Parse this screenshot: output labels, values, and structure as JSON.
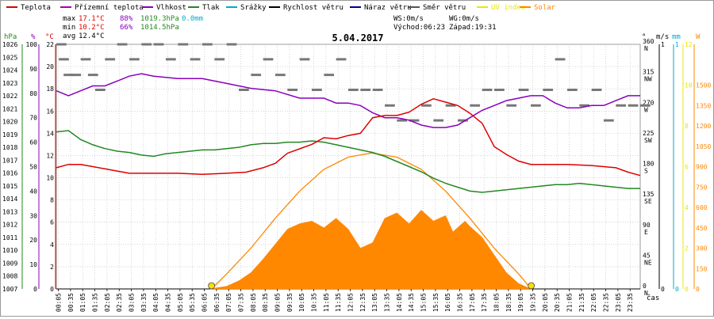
{
  "legend": [
    {
      "label": "Teplota",
      "color": "#dd0000"
    },
    {
      "label": "Přízemní teplota",
      "color": "#aa00aa"
    },
    {
      "label": "Vlhkost",
      "color": "#8800bb"
    },
    {
      "label": "Tlak",
      "color": "#228822"
    },
    {
      "label": "Srážky",
      "color": "#00aacc"
    },
    {
      "label": "Rychlost větru",
      "color": "#000000"
    },
    {
      "label": "Náraz větru",
      "color": "#000088"
    },
    {
      "label": "Směr větru",
      "color": "#555555"
    },
    {
      "label": "UV index",
      "color": "#e8e800"
    },
    {
      "label": "Solar",
      "color": "#ff8800"
    }
  ],
  "stats": {
    "max_label": "max",
    "max_temp": "17.1°C",
    "max_hum": "88%",
    "max_press": "1019.3hPa",
    "max_rain": "0.0mm",
    "min_label": "min",
    "min_temp": "10.2°C",
    "min_hum": "66%",
    "min_press": "1014.5hPa",
    "avg_label": "avg",
    "avg_temp": "12.4°C"
  },
  "wind": {
    "ws": "WS:0m/s",
    "wg": "WG:0m/s",
    "sunrise": "Východ:06:23",
    "sunset": "Západ:19:31"
  },
  "date": "5.04.2017",
  "axis_headers": {
    "hpa": "hPa",
    "pct": "%",
    "degc": "°C",
    "deg": "°",
    "ms": "m/s",
    "mm": "mm",
    "w": "W"
  },
  "xlabel": "čas",
  "colors": {
    "temp": "#dd0000",
    "hum": "#8800bb",
    "press": "#228822",
    "solar": "#ff8800",
    "grid": "#bbbbbb",
    "dir": "#777777",
    "sun": "#ffdd00"
  },
  "chart_data": {
    "type": "line",
    "title": "5.04.2017",
    "x_range_hours": [
      0,
      24
    ],
    "x_ticks": [
      "00:05",
      "00:35",
      "01:05",
      "01:35",
      "02:05",
      "02:35",
      "03:05",
      "03:35",
      "04:05",
      "04:35",
      "05:05",
      "05:35",
      "06:05",
      "06:35",
      "07:05",
      "07:35",
      "08:05",
      "08:35",
      "09:05",
      "09:35",
      "10:05",
      "10:35",
      "11:05",
      "11:35",
      "12:05",
      "12:35",
      "13:05",
      "13:35",
      "14:05",
      "14:35",
      "15:05",
      "15:35",
      "16:05",
      "16:35",
      "17:05",
      "17:35",
      "18:05",
      "18:35",
      "19:05",
      "19:35",
      "20:05",
      "20:35",
      "21:05",
      "21:35",
      "22:05",
      "22:35",
      "23:05",
      "23:35"
    ],
    "y_axes": {
      "pressure_hpa": {
        "range": [
          1007,
          1026
        ],
        "ticks": [
          "1007",
          "1008",
          "1009",
          "1010",
          "1011",
          "1012",
          "1013",
          "1014",
          "1015",
          "1016",
          "1017",
          "1018",
          "1019",
          "1020",
          "1021",
          "1022",
          "1023",
          "1024",
          "1025",
          "1026"
        ]
      },
      "humidity_pct": {
        "range": [
          0,
          100
        ],
        "ticks": [
          "0",
          "10",
          "20",
          "30",
          "40",
          "50",
          "60",
          "70",
          "80",
          "90",
          "100"
        ]
      },
      "temp_c": {
        "range": [
          0,
          22
        ],
        "ticks": [
          "0",
          "2",
          "4",
          "6",
          "8",
          "10",
          "12",
          "14",
          "16",
          "18",
          "20",
          "22"
        ]
      },
      "wind_dir_deg": {
        "range": [
          0,
          360
        ],
        "ticks": [
          "0",
          "45",
          "90",
          "135",
          "180",
          "225",
          "270",
          "315",
          "360"
        ],
        "compass": [
          "N",
          "NE",
          "E",
          "SE",
          "S",
          "SW",
          "W",
          "NW",
          "N"
        ]
      },
      "wind_ms": {
        "range": [
          0,
          1
        ],
        "ticks": [
          "0",
          "1"
        ]
      },
      "rain_mm": {
        "range": [
          0,
          1
        ],
        "ticks": [
          "0",
          "1"
        ]
      },
      "uv": {
        "range": [
          0,
          12
        ],
        "ticks": [
          "0",
          "2",
          "4",
          "6",
          "8",
          "10",
          "12"
        ]
      },
      "solar_w": {
        "range": [
          0,
          1800
        ],
        "ticks": [
          "0",
          "150",
          "300",
          "450",
          "600",
          "750",
          "900",
          "1050",
          "1200",
          "1350",
          "1500"
        ]
      }
    },
    "series": [
      {
        "name": "Teplota",
        "unit": "°C",
        "color": "#dd0000",
        "points": [
          [
            0,
            10.9
          ],
          [
            0.5,
            11.2
          ],
          [
            1,
            11.2
          ],
          [
            1.5,
            11.0
          ],
          [
            2,
            10.8
          ],
          [
            2.5,
            10.6
          ],
          [
            3,
            10.4
          ],
          [
            4,
            10.4
          ],
          [
            5,
            10.4
          ],
          [
            6,
            10.3
          ],
          [
            7,
            10.4
          ],
          [
            7.8,
            10.5
          ],
          [
            8.5,
            10.9
          ],
          [
            9,
            11.3
          ],
          [
            9.5,
            12.2
          ],
          [
            10,
            12.6
          ],
          [
            10.5,
            13.0
          ],
          [
            11,
            13.6
          ],
          [
            11.5,
            13.5
          ],
          [
            12,
            13.8
          ],
          [
            12.5,
            14.0
          ],
          [
            13,
            15.4
          ],
          [
            13.5,
            15.6
          ],
          [
            14,
            15.6
          ],
          [
            14.5,
            15.9
          ],
          [
            15,
            16.6
          ],
          [
            15.5,
            17.1
          ],
          [
            16,
            16.8
          ],
          [
            16.5,
            16.5
          ],
          [
            17,
            15.8
          ],
          [
            17.5,
            14.9
          ],
          [
            18,
            12.8
          ],
          [
            18.5,
            12.1
          ],
          [
            19,
            11.5
          ],
          [
            19.5,
            11.2
          ],
          [
            20,
            11.2
          ],
          [
            21,
            11.2
          ],
          [
            22,
            11.1
          ],
          [
            22.5,
            11.0
          ],
          [
            23,
            10.9
          ],
          [
            23.5,
            10.5
          ],
          [
            24,
            10.2
          ]
        ]
      },
      {
        "name": "Vlhkost",
        "unit": "%",
        "color": "#8800bb",
        "points": [
          [
            0,
            81
          ],
          [
            0.5,
            79
          ],
          [
            1,
            81
          ],
          [
            1.5,
            83
          ],
          [
            2,
            83
          ],
          [
            2.5,
            85
          ],
          [
            3,
            87
          ],
          [
            3.5,
            88
          ],
          [
            4,
            87
          ],
          [
            5,
            86
          ],
          [
            6,
            86
          ],
          [
            7,
            84
          ],
          [
            8,
            82
          ],
          [
            9,
            81
          ],
          [
            10,
            78
          ],
          [
            11,
            78
          ],
          [
            11.5,
            76
          ],
          [
            12,
            76
          ],
          [
            12.5,
            75
          ],
          [
            13,
            72
          ],
          [
            13.5,
            70
          ],
          [
            14,
            70
          ],
          [
            14.5,
            69
          ],
          [
            15,
            67
          ],
          [
            15.5,
            66
          ],
          [
            16,
            66
          ],
          [
            16.5,
            67
          ],
          [
            17,
            70
          ],
          [
            17.5,
            73
          ],
          [
            18,
            75
          ],
          [
            18.5,
            77
          ],
          [
            19,
            78
          ],
          [
            19.5,
            79
          ],
          [
            20,
            79
          ],
          [
            20.5,
            76
          ],
          [
            21,
            74
          ],
          [
            21.5,
            74
          ],
          [
            22,
            75
          ],
          [
            22.5,
            75
          ],
          [
            23,
            77
          ],
          [
            23.5,
            79
          ],
          [
            24,
            79
          ]
        ]
      },
      {
        "name": "Tlak",
        "unit": "hPa",
        "color": "#228822",
        "points": [
          [
            0,
            1019.2
          ],
          [
            0.5,
            1019.3
          ],
          [
            1,
            1018.6
          ],
          [
            1.5,
            1018.2
          ],
          [
            2,
            1017.9
          ],
          [
            2.5,
            1017.7
          ],
          [
            3,
            1017.6
          ],
          [
            3.5,
            1017.4
          ],
          [
            4,
            1017.3
          ],
          [
            4.5,
            1017.5
          ],
          [
            5,
            1017.6
          ],
          [
            5.5,
            1017.7
          ],
          [
            6,
            1017.8
          ],
          [
            6.5,
            1017.8
          ],
          [
            7,
            1017.9
          ],
          [
            7.5,
            1018.0
          ],
          [
            8,
            1018.2
          ],
          [
            8.5,
            1018.3
          ],
          [
            9,
            1018.3
          ],
          [
            9.5,
            1018.4
          ],
          [
            10,
            1018.4
          ],
          [
            10.5,
            1018.5
          ],
          [
            11,
            1018.4
          ],
          [
            11.5,
            1018.2
          ],
          [
            12,
            1018.0
          ],
          [
            12.5,
            1017.8
          ],
          [
            13,
            1017.6
          ],
          [
            13.5,
            1017.3
          ],
          [
            14,
            1016.9
          ],
          [
            14.5,
            1016.5
          ],
          [
            15,
            1016.1
          ],
          [
            15.5,
            1015.6
          ],
          [
            16,
            1015.2
          ],
          [
            16.5,
            1014.9
          ],
          [
            17,
            1014.6
          ],
          [
            17.5,
            1014.5
          ],
          [
            18,
            1014.6
          ],
          [
            18.5,
            1014.7
          ],
          [
            19,
            1014.8
          ],
          [
            19.5,
            1014.9
          ],
          [
            20,
            1015.0
          ],
          [
            20.5,
            1015.1
          ],
          [
            21,
            1015.1
          ],
          [
            21.5,
            1015.2
          ],
          [
            22,
            1015.1
          ],
          [
            22.5,
            1015.0
          ],
          [
            23,
            1014.9
          ],
          [
            23.5,
            1014.8
          ],
          [
            24,
            1014.8
          ]
        ]
      },
      {
        "name": "Solar",
        "unit": "W",
        "color": "#ff8800",
        "fill": true,
        "points": [
          [
            6.3,
            0
          ],
          [
            7,
            20
          ],
          [
            7.5,
            60
          ],
          [
            8,
            120
          ],
          [
            8.5,
            220
          ],
          [
            9,
            330
          ],
          [
            9.5,
            440
          ],
          [
            10,
            480
          ],
          [
            10.5,
            500
          ],
          [
            11,
            450
          ],
          [
            11.5,
            520
          ],
          [
            12,
            440
          ],
          [
            12.5,
            300
          ],
          [
            13,
            340
          ],
          [
            13.5,
            520
          ],
          [
            14,
            560
          ],
          [
            14.5,
            480
          ],
          [
            15,
            580
          ],
          [
            15.5,
            500
          ],
          [
            16,
            540
          ],
          [
            16.3,
            420
          ],
          [
            16.8,
            500
          ],
          [
            17,
            460
          ],
          [
            17.5,
            380
          ],
          [
            18,
            250
          ],
          [
            18.5,
            120
          ],
          [
            19,
            40
          ],
          [
            19.5,
            0
          ]
        ]
      },
      {
        "name": "Solar max",
        "unit": "W",
        "color": "#ff8800",
        "points": [
          [
            6.38,
            0
          ],
          [
            7,
            110
          ],
          [
            8,
            300
          ],
          [
            9,
            520
          ],
          [
            10,
            720
          ],
          [
            11,
            880
          ],
          [
            12,
            970
          ],
          [
            12.95,
            1000
          ],
          [
            14,
            970
          ],
          [
            15,
            880
          ],
          [
            16,
            720
          ],
          [
            17,
            520
          ],
          [
            18,
            300
          ],
          [
            19,
            110
          ],
          [
            19.52,
            0
          ]
        ]
      }
    ],
    "wind_direction_deg": [
      [
        0,
        360
      ],
      [
        0.1,
        338
      ],
      [
        0.3,
        315
      ],
      [
        0.6,
        315
      ],
      [
        1,
        338
      ],
      [
        1.3,
        315
      ],
      [
        1.6,
        293
      ],
      [
        2,
        338
      ],
      [
        2.5,
        360
      ],
      [
        3,
        338
      ],
      [
        3.5,
        360
      ],
      [
        4,
        360
      ],
      [
        4.5,
        338
      ],
      [
        5,
        360
      ],
      [
        5.5,
        338
      ],
      [
        6,
        360
      ],
      [
        6.5,
        338
      ],
      [
        7,
        360
      ],
      [
        7.5,
        293
      ],
      [
        8,
        315
      ],
      [
        8.5,
        338
      ],
      [
        9,
        315
      ],
      [
        9.5,
        293
      ],
      [
        10,
        338
      ],
      [
        10.5,
        293
      ],
      [
        11,
        315
      ],
      [
        11.5,
        338
      ],
      [
        12,
        293
      ],
      [
        12.5,
        293
      ],
      [
        13,
        293
      ],
      [
        13.5,
        270
      ],
      [
        14,
        248
      ],
      [
        14.5,
        248
      ],
      [
        15,
        270
      ],
      [
        15.5,
        248
      ],
      [
        16,
        270
      ],
      [
        16.5,
        248
      ],
      [
        17,
        270
      ],
      [
        17.5,
        293
      ],
      [
        18,
        293
      ],
      [
        18.5,
        270
      ],
      [
        19,
        293
      ],
      [
        19.5,
        270
      ],
      [
        20,
        293
      ],
      [
        20.5,
        338
      ],
      [
        21,
        293
      ],
      [
        21.5,
        270
      ],
      [
        22,
        293
      ],
      [
        22.5,
        248
      ],
      [
        23,
        270
      ],
      [
        23.5,
        270
      ],
      [
        24,
        270
      ]
    ],
    "sun_markers": [
      {
        "label": "Východ",
        "hour": 6.38
      },
      {
        "label": "Západ",
        "hour": 19.52
      }
    ]
  }
}
